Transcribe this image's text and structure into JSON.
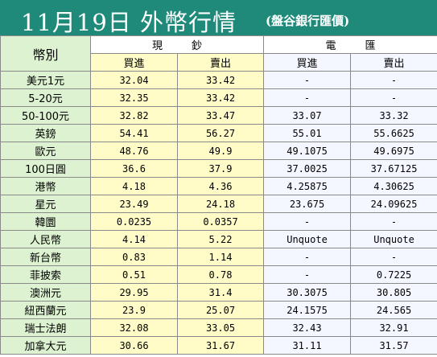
{
  "title": "11月19日 外幣行情",
  "subtitle": "(盤谷銀行匯價)",
  "header": {
    "currency_label": "幣別",
    "cash_label": "現鈔",
    "wire_label": "電匯",
    "buy_label": "買進",
    "sell_label": "賣出"
  },
  "rows": [
    {
      "currency": "美元1元",
      "cash_buy": "32.04",
      "cash_sell": "33.42",
      "wire_buy": "-",
      "wire_sell": "-"
    },
    {
      "currency": "5-20元",
      "cash_buy": "32.35",
      "cash_sell": "33.42",
      "wire_buy": "-",
      "wire_sell": "-"
    },
    {
      "currency": "50-100元",
      "cash_buy": "32.82",
      "cash_sell": "33.47",
      "wire_buy": "33.07",
      "wire_sell": "33.32"
    },
    {
      "currency": "英鎊",
      "cash_buy": "54.41",
      "cash_sell": "56.27",
      "wire_buy": "55.01",
      "wire_sell": "55.6625"
    },
    {
      "currency": "歐元",
      "cash_buy": "48.76",
      "cash_sell": "49.9",
      "wire_buy": "49.1075",
      "wire_sell": "49.6975"
    },
    {
      "currency": "100日圓",
      "cash_buy": "36.6",
      "cash_sell": "37.9",
      "wire_buy": "37.0025",
      "wire_sell": "37.67125"
    },
    {
      "currency": "港幣",
      "cash_buy": "4.18",
      "cash_sell": "4.36",
      "wire_buy": "4.25875",
      "wire_sell": "4.30625"
    },
    {
      "currency": "星元",
      "cash_buy": "23.49",
      "cash_sell": "24.18",
      "wire_buy": "23.675",
      "wire_sell": "24.09625"
    },
    {
      "currency": "韓圜",
      "cash_buy": "0.0235",
      "cash_sell": "0.0357",
      "wire_buy": "-",
      "wire_sell": "-"
    },
    {
      "currency": "人民幣",
      "cash_buy": "4.14",
      "cash_sell": "5.22",
      "wire_buy": "Unquote",
      "wire_sell": "Unquote"
    },
    {
      "currency": "新台幣",
      "cash_buy": "0.83",
      "cash_sell": "1.14",
      "wire_buy": "-",
      "wire_sell": "-"
    },
    {
      "currency": "菲披索",
      "cash_buy": "0.51",
      "cash_sell": "0.78",
      "wire_buy": "-",
      "wire_sell": "0.7225"
    },
    {
      "currency": "澳洲元",
      "cash_buy": "29.95",
      "cash_sell": "31.4",
      "wire_buy": "30.3075",
      "wire_sell": "30.805"
    },
    {
      "currency": "紐西蘭元",
      "cash_buy": "23.9",
      "cash_sell": "25.07",
      "wire_buy": "24.1575",
      "wire_sell": "24.565"
    },
    {
      "currency": "瑞士法朗",
      "cash_buy": "32.08",
      "cash_sell": "33.05",
      "wire_buy": "32.43",
      "wire_sell": "32.91"
    },
    {
      "currency": "加拿大元",
      "cash_buy": "30.66",
      "cash_sell": "31.67",
      "wire_buy": "31.11",
      "wire_sell": "31.57"
    }
  ]
}
